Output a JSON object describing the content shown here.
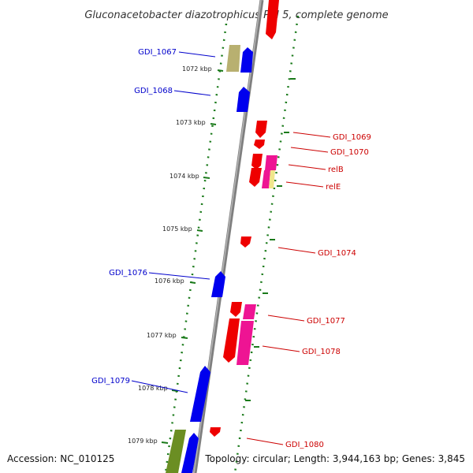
{
  "title": "Gluconacetobacter diazotrophicus PAI 5, complete genome",
  "accession": "Accession: NC_010125",
  "topology": "Topology: circular; Length: 3,944,163 bp; Genes: 3,845",
  "colors": {
    "backbone": "#8a8a8a",
    "tick": "#1a7a1a",
    "forward_label": "#0000cc",
    "reverse_label": "#cc0000",
    "gene_blue": "#0000ee",
    "gene_red": "#ee0000",
    "gene_magenta": "#ee1493",
    "gene_olive": "#b8b070",
    "gene_green": "#6b8e23",
    "gene_pale": "#f0e68c"
  },
  "scale_labels": [
    "1072 kbp",
    "1073 kbp",
    "1074 kbp",
    "1075 kbp",
    "1076 kbp",
    "1077 kbp",
    "1078 kbp",
    "1079 kbp"
  ],
  "forward_genes": [
    "GDI_1067",
    "GDI_1068",
    "GDI_1076",
    "GDI_1079"
  ],
  "reverse_genes": [
    "GDI_1069",
    "GDI_1070",
    "relB",
    "relE",
    "GDI_1074",
    "GDI_1077",
    "GDI_1078",
    "GDI_1080"
  ]
}
